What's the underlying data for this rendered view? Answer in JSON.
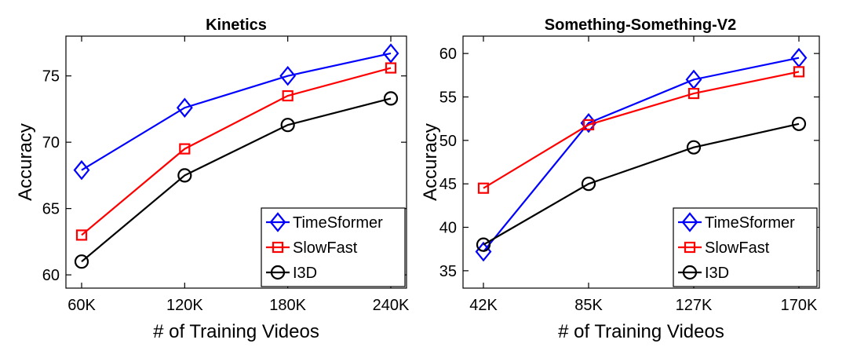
{
  "chart_data": [
    {
      "type": "line",
      "title": "Kinetics",
      "xlabel": "# of Training Videos",
      "ylabel": "Accuracy",
      "categories": [
        "60K",
        "120K",
        "180K",
        "240K"
      ],
      "ylim": [
        59,
        78
      ],
      "yticks": [
        60,
        65,
        70,
        75
      ],
      "grid": false,
      "legend_position": "bottom-right",
      "series": [
        {
          "name": "TimeSformer",
          "color": "#0000ff",
          "marker": "diamond",
          "values": [
            67.9,
            72.6,
            75.0,
            76.7
          ]
        },
        {
          "name": "SlowFast",
          "color": "#ff0000",
          "marker": "square",
          "values": [
            63.0,
            69.5,
            73.5,
            75.6
          ]
        },
        {
          "name": "I3D",
          "color": "#000000",
          "marker": "circle",
          "values": [
            61.0,
            67.5,
            71.3,
            73.3
          ]
        }
      ]
    },
    {
      "type": "line",
      "title": "Something-Something-V2",
      "xlabel": "# of Training Videos",
      "ylabel": "Accuracy",
      "categories": [
        "42K",
        "85K",
        "127K",
        "170K"
      ],
      "ylim": [
        33,
        62
      ],
      "yticks": [
        35,
        40,
        45,
        50,
        55,
        60
      ],
      "grid": false,
      "legend_position": "bottom-right",
      "series": [
        {
          "name": "TimeSformer",
          "color": "#0000ff",
          "marker": "diamond",
          "values": [
            37.2,
            52.0,
            57.0,
            59.5
          ]
        },
        {
          "name": "SlowFast",
          "color": "#ff0000",
          "marker": "square",
          "values": [
            44.5,
            51.8,
            55.4,
            57.9
          ]
        },
        {
          "name": "I3D",
          "color": "#000000",
          "marker": "circle",
          "values": [
            38.0,
            45.0,
            49.2,
            51.9
          ]
        }
      ]
    }
  ]
}
